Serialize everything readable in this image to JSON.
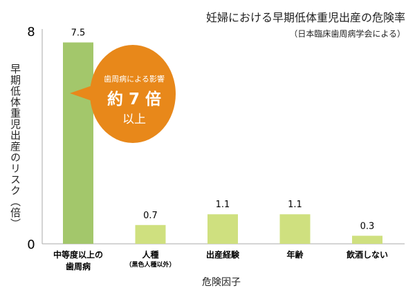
{
  "chart_data": {
    "type": "bar",
    "title": "妊婦における早期低体重児出産の危険率",
    "subtitle": "（日本臨床歯周病学会による）",
    "xlabel": "危険因子",
    "ylabel": "早期低体重児出産のリスク（倍）",
    "ylim": [
      0,
      8
    ],
    "yticks": [
      "0",
      "8"
    ],
    "grid": false,
    "categories": [
      {
        "label": "中等度以上の",
        "label2": "歯周病"
      },
      {
        "label": "人種",
        "label2": "（黒色人種以外）"
      },
      {
        "label": "出産経験",
        "label2": ""
      },
      {
        "label": "年齢",
        "label2": ""
      },
      {
        "label": "飲酒しない",
        "label2": ""
      }
    ],
    "values": [
      7.5,
      0.7,
      1.1,
      1.1,
      0.3
    ],
    "value_labels": [
      "7.5",
      "0.7",
      "1.1",
      "1.1",
      "0.3"
    ],
    "colors": {
      "highlight": "#a3c76b",
      "bar": "#cfe07f",
      "callout": "#e8881a",
      "axis": "#aaaaaa"
    },
    "annotation": {
      "line1": "歯周病による影響",
      "line2": "約 7 倍",
      "line3": "以上"
    }
  }
}
